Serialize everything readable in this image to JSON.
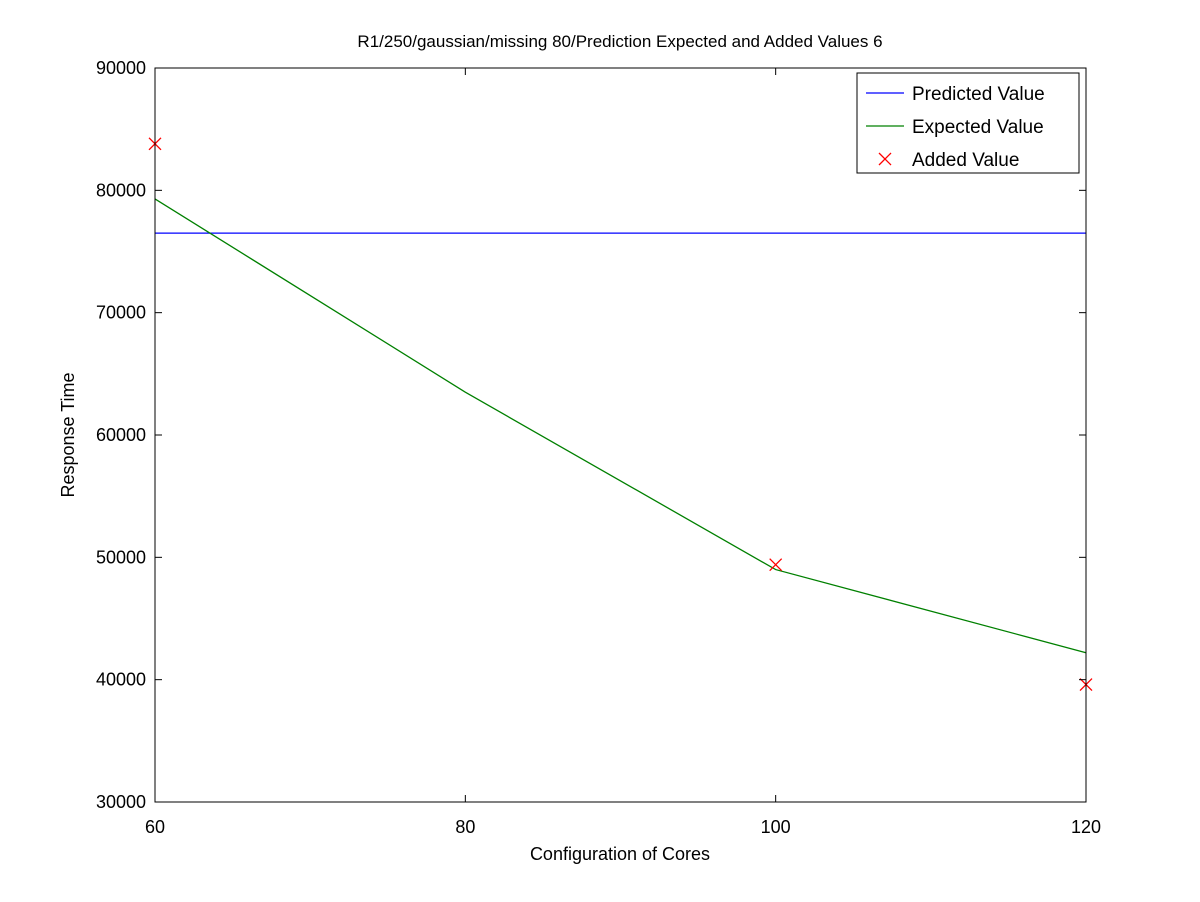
{
  "chart_data": {
    "type": "line",
    "title": "R1/250/gaussian/missing 80/Prediction Expected and Added Values 6",
    "xlabel": "Configuration of Cores",
    "ylabel": "Response Time",
    "xlim": [
      60,
      120
    ],
    "ylim": [
      30000,
      90000
    ],
    "xticks": [
      60,
      80,
      100,
      120
    ],
    "yticks": [
      30000,
      40000,
      50000,
      60000,
      70000,
      80000,
      90000
    ],
    "grid": false,
    "legend_position": "top-right",
    "series": [
      {
        "name": "Predicted Value",
        "style": "line",
        "color": "#0000ff",
        "x": [
          60,
          120
        ],
        "y": [
          76500,
          76500
        ]
      },
      {
        "name": "Expected Value",
        "style": "line",
        "color": "#008000",
        "x": [
          60,
          80,
          100,
          120
        ],
        "y": [
          79300,
          63500,
          49000,
          42200
        ]
      },
      {
        "name": "Added Value",
        "style": "marker-x",
        "color": "#ff0000",
        "x": [
          60,
          100,
          120
        ],
        "y": [
          83800,
          49400,
          39600
        ]
      }
    ]
  }
}
